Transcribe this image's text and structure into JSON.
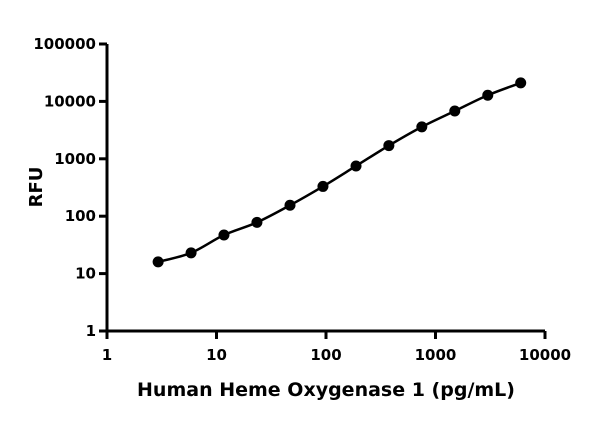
{
  "chart_data": {
    "type": "scatter",
    "x_scale": "log",
    "y_scale": "log",
    "xlabel": "Human Heme Oxygenase 1 (pg/mL)",
    "ylabel": "RFU",
    "xlim": [
      1,
      10000
    ],
    "ylim": [
      1,
      100000
    ],
    "x_ticks": [
      "1",
      "10",
      "100",
      "1000",
      "10000"
    ],
    "y_ticks": [
      "1",
      "10",
      "100",
      "1000",
      "10000",
      "100000"
    ],
    "grid": false,
    "legend": "none",
    "series": [
      {
        "x": [
          2.93,
          5.86,
          11.7,
          23.4,
          46.9,
          93.8,
          188,
          375,
          750,
          1500,
          3000,
          6000
        ],
        "y": [
          16,
          23,
          47,
          78,
          155,
          330,
          750,
          1700,
          3600,
          6800,
          12800,
          21000
        ],
        "color": "#000000",
        "marker": "circle",
        "fit_line": true
      }
    ]
  }
}
